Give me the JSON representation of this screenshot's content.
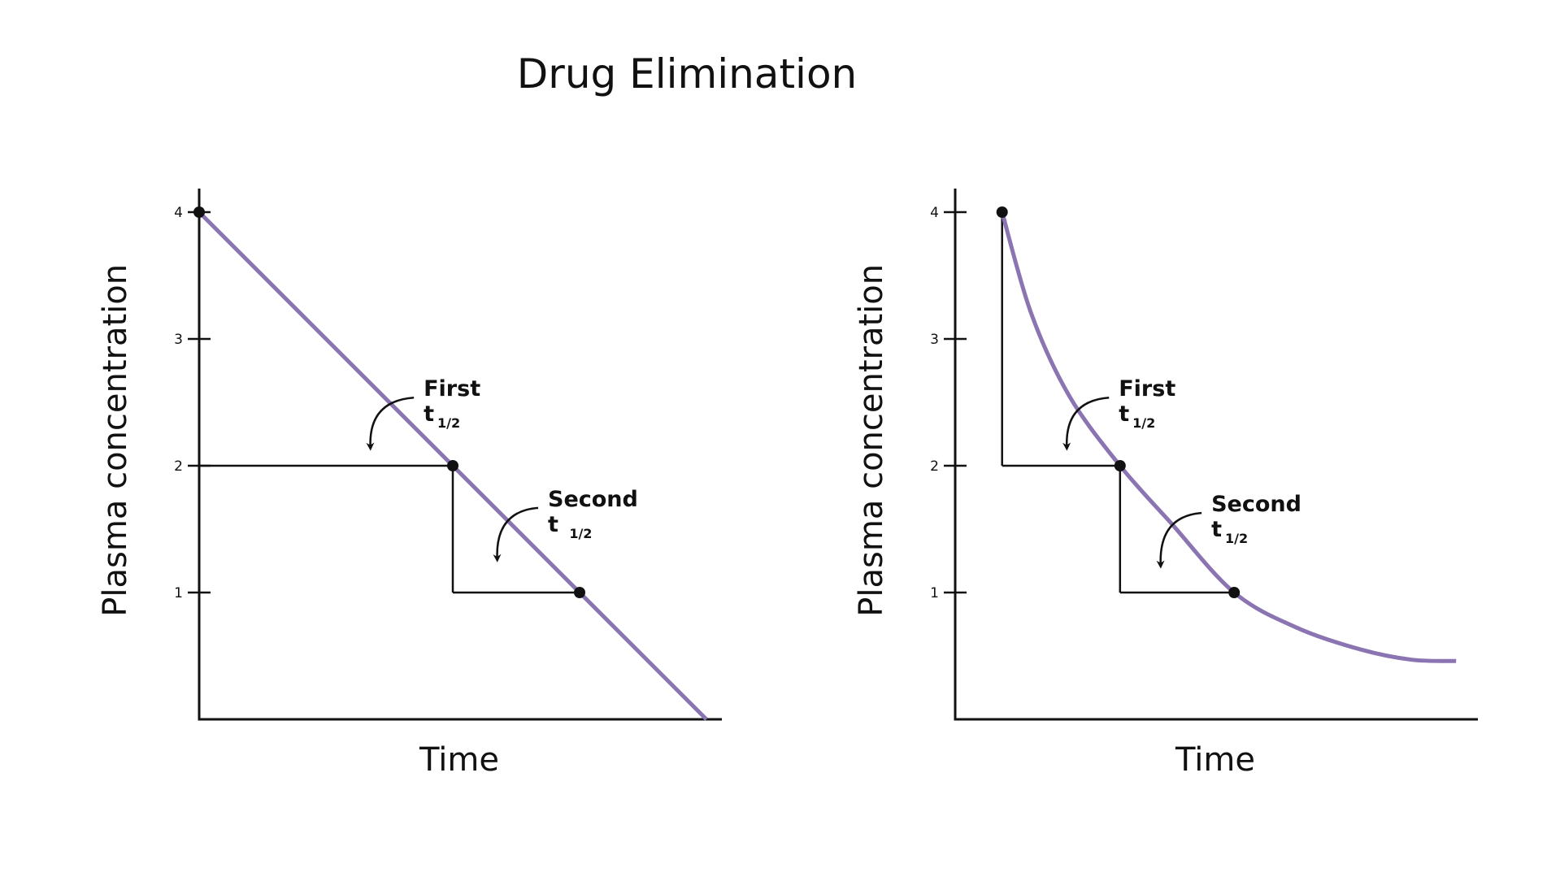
{
  "figure": {
    "title": "Drug Elimination"
  },
  "colors": {
    "curve": "#8b74b2",
    "ink": "#111111"
  },
  "chart_data": [
    {
      "type": "line",
      "xlabel": "Time",
      "ylabel": "Plasma concentration",
      "yticks": [
        1,
        2,
        3,
        4
      ],
      "ylim": [
        0,
        4.2
      ],
      "xlim": [
        0,
        4.1
      ],
      "shape": "linear (zero-order)",
      "series": [
        {
          "x": [
            0,
            4
          ],
          "y": [
            4,
            0
          ]
        }
      ],
      "points": [
        {
          "x": 0,
          "y": 4
        },
        {
          "x": 2,
          "y": 2
        },
        {
          "x": 3,
          "y": 1
        }
      ],
      "guides": [
        {
          "from": [
            0,
            2
          ],
          "to": [
            2,
            2
          ]
        },
        {
          "from": [
            2,
            2
          ],
          "to": [
            2,
            1
          ]
        },
        {
          "from": [
            2,
            1
          ],
          "to": [
            3,
            1
          ]
        }
      ],
      "annotations": [
        {
          "text": "First",
          "sub_prefix": "t",
          "sub": "1/2",
          "ax": 1.77,
          "ay": 2.55,
          "arrow_to": [
            1.35,
            2.15
          ]
        },
        {
          "text": "Second",
          "sub_prefix": "t ",
          "sub": "1/2",
          "ax": 2.75,
          "ay": 1.68,
          "arrow_to": [
            2.35,
            1.27
          ]
        }
      ]
    },
    {
      "type": "line",
      "xlabel": "Time",
      "ylabel": "Plasma concentration",
      "yticks": [
        1,
        2,
        3,
        4
      ],
      "ylim": [
        0,
        4.2
      ],
      "xlim": [
        0,
        4.1
      ],
      "shape": "exponential (first-order)",
      "series": [
        {
          "x": [
            0.37,
            0.6,
            0.9,
            1.3,
            1.7,
            2.2,
            2.7,
            3.2,
            3.6,
            3.95
          ],
          "y": [
            4.0,
            3.2,
            2.55,
            2.0,
            1.55,
            1.0,
            0.72,
            0.55,
            0.47,
            0.46
          ]
        }
      ],
      "points": [
        {
          "x": 0.37,
          "y": 4
        },
        {
          "x": 1.3,
          "y": 2
        },
        {
          "x": 2.2,
          "y": 1
        }
      ],
      "guides": [
        {
          "from": [
            0.37,
            4
          ],
          "to": [
            0.37,
            2
          ]
        },
        {
          "from": [
            0.37,
            2
          ],
          "to": [
            1.3,
            2
          ]
        },
        {
          "from": [
            1.3,
            2
          ],
          "to": [
            1.3,
            1
          ]
        },
        {
          "from": [
            1.3,
            1
          ],
          "to": [
            2.2,
            1
          ]
        }
      ],
      "annotations": [
        {
          "text": "First",
          "sub_prefix": "t",
          "sub": "1/2",
          "ax": 1.29,
          "ay": 2.55,
          "arrow_to": [
            0.88,
            2.15
          ]
        },
        {
          "text": "Second",
          "sub_prefix": "t",
          "sub": "1/2",
          "ax": 2.02,
          "ay": 1.64,
          "arrow_to": [
            1.62,
            1.22
          ]
        }
      ]
    }
  ]
}
